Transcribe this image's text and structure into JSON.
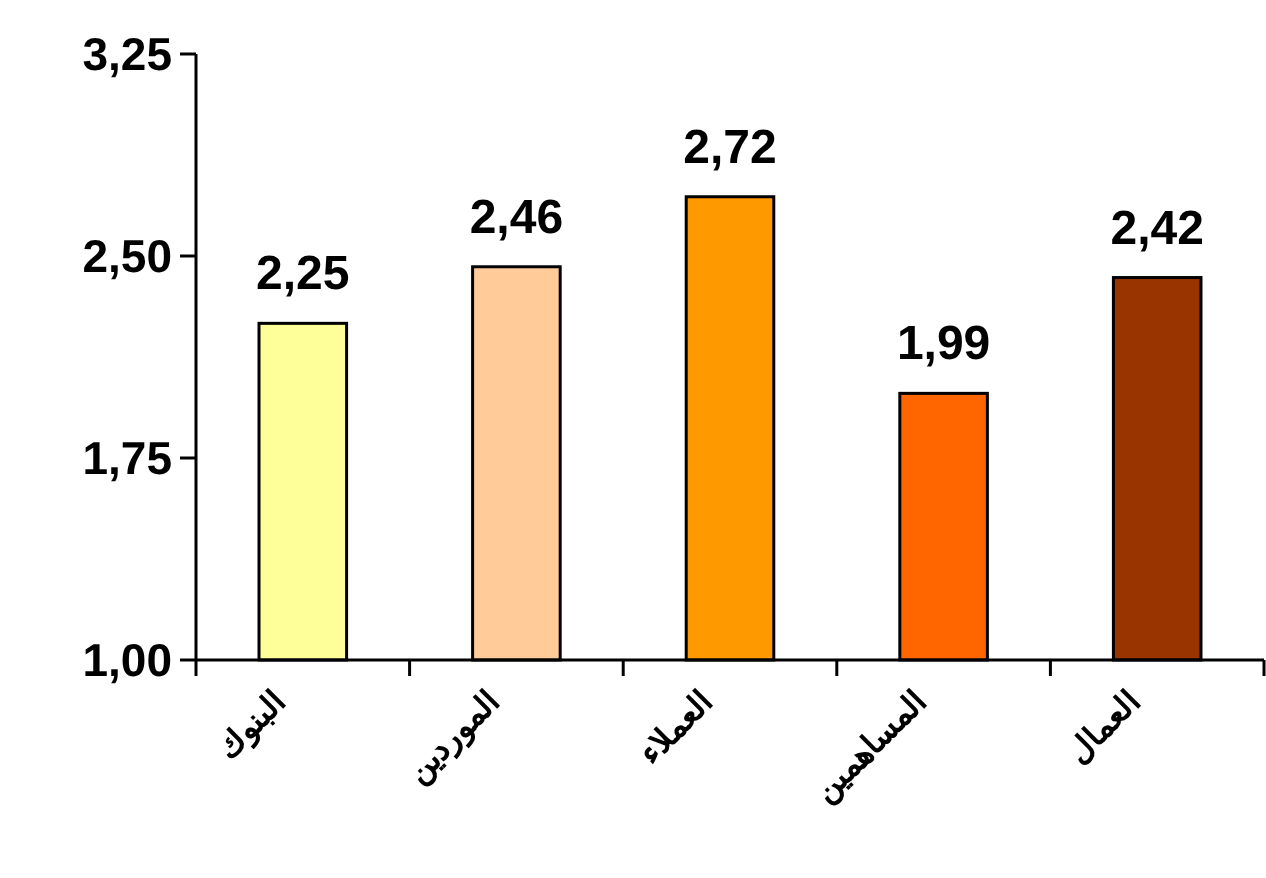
{
  "chart_data": {
    "type": "bar",
    "categories": [
      "البنوك",
      "الموردين",
      "العملاء",
      "المساهمين",
      "العمال"
    ],
    "values": [
      2.25,
      2.46,
      2.72,
      1.99,
      2.42
    ],
    "colors": [
      "#ffff99",
      "#ffcc99",
      "#ff9900",
      "#ff6600",
      "#993300"
    ],
    "value_labels": [
      "2,25",
      "2,46",
      "2,72",
      "1,99",
      "2,42"
    ],
    "ylim": [
      1.0,
      3.25
    ],
    "yticks": [
      {
        "value": 1.0,
        "label": "1,00"
      },
      {
        "value": 1.75,
        "label": "1,75"
      },
      {
        "value": 2.5,
        "label": "2,50"
      },
      {
        "value": 3.25,
        "label": "3,25"
      }
    ],
    "grid": false
  }
}
